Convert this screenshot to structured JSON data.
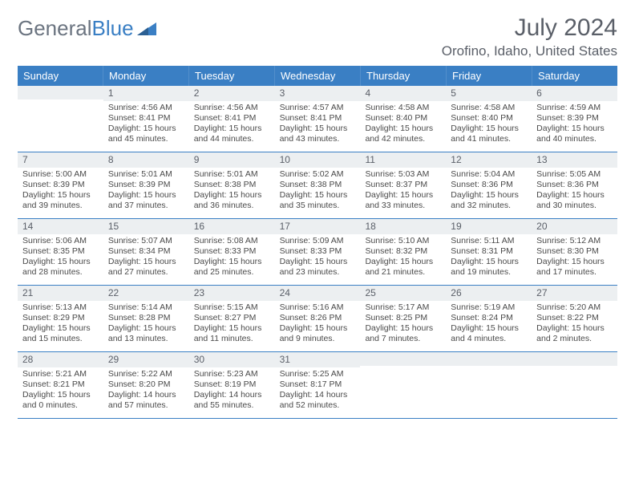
{
  "logo": {
    "text_gray": "General",
    "text_blue": "Blue"
  },
  "title": "July 2024",
  "location": "Orofino, Idaho, United States",
  "colors": {
    "header_bg": "#3a7fc4",
    "header_text": "#ffffff",
    "daynum_bg": "#eceff1",
    "text": "#4a4a4a",
    "border": "#3a7fc4"
  },
  "day_headers": [
    "Sunday",
    "Monday",
    "Tuesday",
    "Wednesday",
    "Thursday",
    "Friday",
    "Saturday"
  ],
  "weeks": [
    [
      {
        "num": "",
        "lines": []
      },
      {
        "num": "1",
        "lines": [
          "Sunrise: 4:56 AM",
          "Sunset: 8:41 PM",
          "Daylight: 15 hours and 45 minutes."
        ]
      },
      {
        "num": "2",
        "lines": [
          "Sunrise: 4:56 AM",
          "Sunset: 8:41 PM",
          "Daylight: 15 hours and 44 minutes."
        ]
      },
      {
        "num": "3",
        "lines": [
          "Sunrise: 4:57 AM",
          "Sunset: 8:41 PM",
          "Daylight: 15 hours and 43 minutes."
        ]
      },
      {
        "num": "4",
        "lines": [
          "Sunrise: 4:58 AM",
          "Sunset: 8:40 PM",
          "Daylight: 15 hours and 42 minutes."
        ]
      },
      {
        "num": "5",
        "lines": [
          "Sunrise: 4:58 AM",
          "Sunset: 8:40 PM",
          "Daylight: 15 hours and 41 minutes."
        ]
      },
      {
        "num": "6",
        "lines": [
          "Sunrise: 4:59 AM",
          "Sunset: 8:39 PM",
          "Daylight: 15 hours and 40 minutes."
        ]
      }
    ],
    [
      {
        "num": "7",
        "lines": [
          "Sunrise: 5:00 AM",
          "Sunset: 8:39 PM",
          "Daylight: 15 hours and 39 minutes."
        ]
      },
      {
        "num": "8",
        "lines": [
          "Sunrise: 5:01 AM",
          "Sunset: 8:39 PM",
          "Daylight: 15 hours and 37 minutes."
        ]
      },
      {
        "num": "9",
        "lines": [
          "Sunrise: 5:01 AM",
          "Sunset: 8:38 PM",
          "Daylight: 15 hours and 36 minutes."
        ]
      },
      {
        "num": "10",
        "lines": [
          "Sunrise: 5:02 AM",
          "Sunset: 8:38 PM",
          "Daylight: 15 hours and 35 minutes."
        ]
      },
      {
        "num": "11",
        "lines": [
          "Sunrise: 5:03 AM",
          "Sunset: 8:37 PM",
          "Daylight: 15 hours and 33 minutes."
        ]
      },
      {
        "num": "12",
        "lines": [
          "Sunrise: 5:04 AM",
          "Sunset: 8:36 PM",
          "Daylight: 15 hours and 32 minutes."
        ]
      },
      {
        "num": "13",
        "lines": [
          "Sunrise: 5:05 AM",
          "Sunset: 8:36 PM",
          "Daylight: 15 hours and 30 minutes."
        ]
      }
    ],
    [
      {
        "num": "14",
        "lines": [
          "Sunrise: 5:06 AM",
          "Sunset: 8:35 PM",
          "Daylight: 15 hours and 28 minutes."
        ]
      },
      {
        "num": "15",
        "lines": [
          "Sunrise: 5:07 AM",
          "Sunset: 8:34 PM",
          "Daylight: 15 hours and 27 minutes."
        ]
      },
      {
        "num": "16",
        "lines": [
          "Sunrise: 5:08 AM",
          "Sunset: 8:33 PM",
          "Daylight: 15 hours and 25 minutes."
        ]
      },
      {
        "num": "17",
        "lines": [
          "Sunrise: 5:09 AM",
          "Sunset: 8:33 PM",
          "Daylight: 15 hours and 23 minutes."
        ]
      },
      {
        "num": "18",
        "lines": [
          "Sunrise: 5:10 AM",
          "Sunset: 8:32 PM",
          "Daylight: 15 hours and 21 minutes."
        ]
      },
      {
        "num": "19",
        "lines": [
          "Sunrise: 5:11 AM",
          "Sunset: 8:31 PM",
          "Daylight: 15 hours and 19 minutes."
        ]
      },
      {
        "num": "20",
        "lines": [
          "Sunrise: 5:12 AM",
          "Sunset: 8:30 PM",
          "Daylight: 15 hours and 17 minutes."
        ]
      }
    ],
    [
      {
        "num": "21",
        "lines": [
          "Sunrise: 5:13 AM",
          "Sunset: 8:29 PM",
          "Daylight: 15 hours and 15 minutes."
        ]
      },
      {
        "num": "22",
        "lines": [
          "Sunrise: 5:14 AM",
          "Sunset: 8:28 PM",
          "Daylight: 15 hours and 13 minutes."
        ]
      },
      {
        "num": "23",
        "lines": [
          "Sunrise: 5:15 AM",
          "Sunset: 8:27 PM",
          "Daylight: 15 hours and 11 minutes."
        ]
      },
      {
        "num": "24",
        "lines": [
          "Sunrise: 5:16 AM",
          "Sunset: 8:26 PM",
          "Daylight: 15 hours and 9 minutes."
        ]
      },
      {
        "num": "25",
        "lines": [
          "Sunrise: 5:17 AM",
          "Sunset: 8:25 PM",
          "Daylight: 15 hours and 7 minutes."
        ]
      },
      {
        "num": "26",
        "lines": [
          "Sunrise: 5:19 AM",
          "Sunset: 8:24 PM",
          "Daylight: 15 hours and 4 minutes."
        ]
      },
      {
        "num": "27",
        "lines": [
          "Sunrise: 5:20 AM",
          "Sunset: 8:22 PM",
          "Daylight: 15 hours and 2 minutes."
        ]
      }
    ],
    [
      {
        "num": "28",
        "lines": [
          "Sunrise: 5:21 AM",
          "Sunset: 8:21 PM",
          "Daylight: 15 hours and 0 minutes."
        ]
      },
      {
        "num": "29",
        "lines": [
          "Sunrise: 5:22 AM",
          "Sunset: 8:20 PM",
          "Daylight: 14 hours and 57 minutes."
        ]
      },
      {
        "num": "30",
        "lines": [
          "Sunrise: 5:23 AM",
          "Sunset: 8:19 PM",
          "Daylight: 14 hours and 55 minutes."
        ]
      },
      {
        "num": "31",
        "lines": [
          "Sunrise: 5:25 AM",
          "Sunset: 8:17 PM",
          "Daylight: 14 hours and 52 minutes."
        ]
      },
      {
        "num": "",
        "lines": []
      },
      {
        "num": "",
        "lines": []
      },
      {
        "num": "",
        "lines": []
      }
    ]
  ]
}
